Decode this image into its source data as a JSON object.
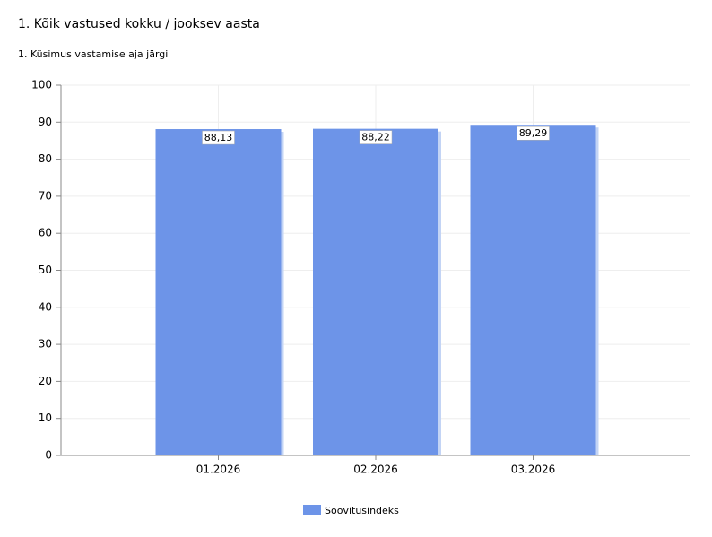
{
  "chart_data": {
    "type": "bar",
    "title": "1. Kõik vastused kokku / jooksev aasta",
    "subtitle": "1. Küsimus vastamise aja järgi",
    "categories": [
      "01.2026",
      "02.2026",
      "03.2026"
    ],
    "series": [
      {
        "name": "Soovitusindeks",
        "color": "#6d94e8",
        "values": [
          88.13,
          88.22,
          89.29
        ],
        "value_labels": [
          "88,13",
          "88,22",
          "89,29"
        ]
      }
    ],
    "ylim": [
      0,
      100
    ],
    "yticks": [
      0,
      10,
      20,
      30,
      40,
      50,
      60,
      70,
      80,
      90,
      100
    ],
    "grid": true,
    "legend": "bottom"
  }
}
